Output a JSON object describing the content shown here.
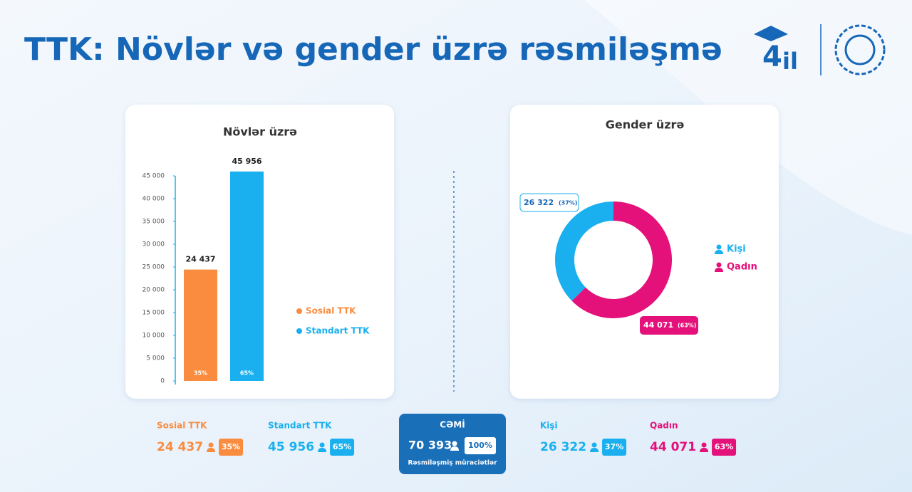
{
  "title": "TTK: Növlər və gender üzrə rəsmiləşmə",
  "logo": {
    "number": "4",
    "text": "il"
  },
  "chart_data": [
    {
      "type": "bar",
      "title": "Növlər üzrə",
      "series": [
        {
          "name": "Sosial TTK",
          "color": "#f98c3f",
          "values": [
            24437
          ],
          "value_labels": [
            "24 437"
          ],
          "share": {
            "value": 35,
            "label": "35%"
          }
        },
        {
          "name": "Standart TTK",
          "color": "#1ab0ef",
          "values": [
            45956
          ],
          "value_labels": [
            "45 956"
          ],
          "share": {
            "value": 65,
            "label": "65%"
          }
        }
      ],
      "ylim": [
        0,
        45000
      ],
      "yticks": [
        0,
        {
          "value": 5000,
          "label": "5 000"
        },
        {
          "value": 10000,
          "label": "10 000"
        },
        {
          "value": 15000,
          "label": "15 000"
        },
        {
          "value": 20000,
          "label": "20 000"
        },
        {
          "value": 25000,
          "label": "25 000"
        },
        {
          "value": 30000,
          "label": "30 000"
        },
        {
          "value": 35000,
          "label": "35 000"
        },
        {
          "value": 40000,
          "label": "40 000"
        },
        {
          "value": 45000,
          "label": "45 000"
        }
      ],
      "legend": "right"
    },
    {
      "type": "donut",
      "title": "Gender üzrə",
      "categories": [
        "Kişi",
        "Qadın"
      ],
      "colors": [
        "#1ab0ef",
        "#e5117a"
      ],
      "values": [
        26322,
        44071
      ],
      "value_labels": [
        "26 322",
        "44 071"
      ],
      "shares": [
        {
          "value": 37,
          "label": "(37%)"
        },
        {
          "value": 63,
          "label": "(63%)"
        }
      ],
      "legend": "right"
    }
  ],
  "summary": {
    "items": [
      {
        "name": "Sosial TTK",
        "value": "24 437",
        "share": "35%",
        "color": "#f98c3f"
      },
      {
        "name": "Standart TTK",
        "value": "45 956",
        "share": "65%",
        "color": "#1ab0ef"
      },
      {
        "name": "Kişi",
        "value": "26 322",
        "share": "37%",
        "color": "#1ab0ef"
      },
      {
        "name": "Qadın",
        "value": "44 071",
        "share": "63%",
        "color": "#e5117a"
      }
    ],
    "total": {
      "title": "CƏMİ",
      "value": "70 393",
      "share": "100%",
      "caption": "Rəsmiləşmiş müraciətlər"
    }
  }
}
